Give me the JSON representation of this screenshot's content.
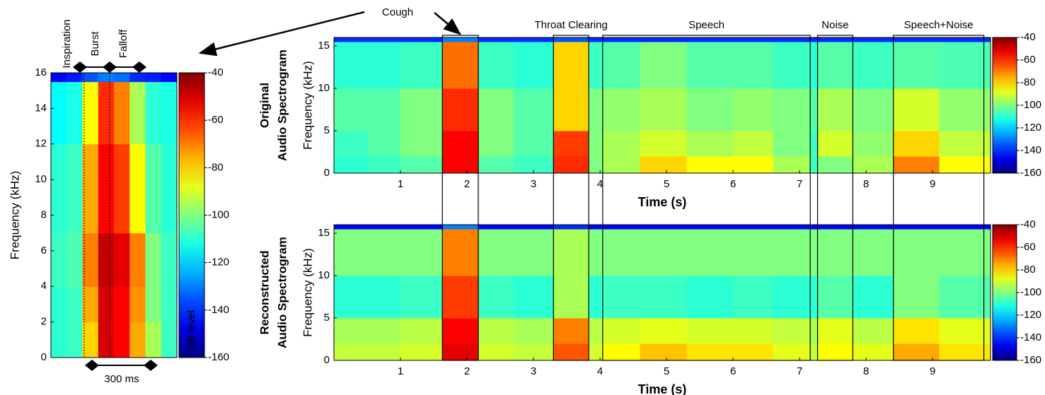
{
  "chart_data": [
    {
      "type": "heatmap",
      "ylabel": "Frequency (kHz)",
      "ylim": [
        0,
        16
      ],
      "yticks": [
        0,
        2,
        4,
        6,
        8,
        10,
        12,
        14,
        16
      ],
      "y_edges": [
        0,
        2,
        4,
        7,
        12,
        15.5,
        16
      ],
      "z": [
        [
          -110,
          -108,
          -80,
          -50,
          -55,
          -75,
          -95,
          -108
        ],
        [
          -110,
          -108,
          -75,
          -50,
          -55,
          -72,
          -100,
          -108
        ],
        [
          -108,
          -106,
          -70,
          -48,
          -52,
          -70,
          -100,
          -108
        ],
        [
          -110,
          -108,
          -75,
          -55,
          -62,
          -85,
          -105,
          -110
        ],
        [
          -115,
          -112,
          -85,
          -60,
          -70,
          -95,
          -110,
          -112
        ],
        [
          -145,
          -142,
          -135,
          -130,
          -132,
          -140,
          -142,
          -145
        ]
      ],
      "clim": [
        -160,
        -40
      ],
      "cticks": [
        -40,
        -60,
        -80,
        -100,
        -120,
        -140,
        -160
      ],
      "clabel": "dB level",
      "annotations": [
        "Inspiration",
        "Burst",
        "Falloff",
        "300 ms"
      ]
    },
    {
      "type": "heatmap",
      "title_lines": [
        "Original",
        "Audio Spectrogram"
      ],
      "ylabel": "Frequency (kHz)",
      "xlabel": "Time (s)",
      "xlim": [
        0,
        9.87
      ],
      "xticks": [
        1,
        2,
        3,
        4,
        5,
        6,
        7,
        8,
        9
      ],
      "ylim": [
        0,
        16
      ],
      "yticks": [
        0,
        5,
        10,
        15
      ],
      "x_edges": [
        0,
        0.5,
        1,
        1.63,
        2.17,
        2.7,
        3.3,
        3.83,
        4.04,
        4.6,
        5.3,
        6,
        6.6,
        7.16,
        7.27,
        7.8,
        8.41,
        9.1,
        9.87
      ],
      "y_edges": [
        0,
        2,
        5,
        10,
        15.5,
        16
      ],
      "z": [
        [
          -110,
          -108,
          -105,
          -55,
          -105,
          -108,
          -60,
          -100,
          -95,
          -80,
          -85,
          -85,
          -95,
          -108,
          -100,
          -95,
          -70,
          -85
        ],
        [
          -108,
          -105,
          -100,
          -55,
          -100,
          -105,
          -62,
          -100,
          -95,
          -90,
          -95,
          -92,
          -100,
          -108,
          -90,
          -98,
          -80,
          -92
        ],
        [
          -105,
          -105,
          -100,
          -60,
          -100,
          -105,
          -80,
          -100,
          -98,
          -95,
          -100,
          -98,
          -100,
          -105,
          -95,
          -100,
          -90,
          -98
        ],
        [
          -110,
          -110,
          -108,
          -68,
          -108,
          -110,
          -80,
          -108,
          -105,
          -100,
          -105,
          -105,
          -108,
          -110,
          -105,
          -108,
          -105,
          -106
        ],
        [
          -140,
          -140,
          -140,
          -130,
          -140,
          -140,
          -135,
          -140,
          -140,
          -140,
          -140,
          -140,
          -140,
          -140,
          -140,
          -140,
          -140,
          -140
        ]
      ],
      "clim": [
        -160,
        -40
      ],
      "cticks": [
        -40,
        -60,
        -80,
        -100,
        -120,
        -140,
        -160
      ]
    },
    {
      "type": "heatmap",
      "title_lines": [
        "Reconstructed",
        "Audio Spectrogram"
      ],
      "ylabel": "Frequency (kHz)",
      "xlabel": "Time (s)",
      "xlim": [
        0,
        9.87
      ],
      "xticks": [
        1,
        2,
        3,
        4,
        5,
        6,
        7,
        8,
        9
      ],
      "ylim": [
        0,
        16
      ],
      "yticks": [
        0,
        5,
        10,
        15
      ],
      "x_edges": [
        0,
        0.5,
        1,
        1.63,
        2.17,
        2.7,
        3.3,
        3.83,
        4.04,
        4.6,
        5.3,
        6,
        6.6,
        7.16,
        7.27,
        7.8,
        8.41,
        9.1,
        9.87
      ],
      "y_edges": [
        0,
        2,
        5,
        10,
        15.5,
        16
      ],
      "z": [
        [
          -92,
          -92,
          -90,
          -52,
          -90,
          -92,
          -65,
          -90,
          -85,
          -78,
          -82,
          -82,
          -88,
          -92,
          -85,
          -88,
          -75,
          -82
        ],
        [
          -95,
          -95,
          -93,
          -55,
          -93,
          -95,
          -70,
          -93,
          -90,
          -88,
          -90,
          -90,
          -92,
          -95,
          -88,
          -93,
          -82,
          -88
        ],
        [
          -110,
          -110,
          -108,
          -62,
          -108,
          -110,
          -95,
          -110,
          -108,
          -108,
          -110,
          -108,
          -110,
          -110,
          -105,
          -110,
          -100,
          -105
        ],
        [
          -100,
          -100,
          -100,
          -70,
          -100,
          -100,
          -95,
          -100,
          -100,
          -100,
          -100,
          -100,
          -100,
          -100,
          -100,
          -100,
          -100,
          -100
        ],
        [
          -145,
          -145,
          -145,
          -130,
          -145,
          -145,
          -140,
          -145,
          -145,
          -145,
          -145,
          -145,
          -145,
          -145,
          -145,
          -145,
          -145,
          -145
        ]
      ],
      "clim": [
        -160,
        -40
      ],
      "cticks": [
        -40,
        -60,
        -80,
        -100,
        -120,
        -140,
        -160
      ]
    }
  ],
  "segments": [
    {
      "label": "Cough",
      "start": 1.63,
      "end": 2.17
    },
    {
      "label": "Throat Clearing",
      "start": 3.3,
      "end": 3.83
    },
    {
      "label": "Speech",
      "start": 4.04,
      "end": 7.16
    },
    {
      "label": "Noise",
      "start": 7.27,
      "end": 7.8
    },
    {
      "label": "Speech+Noise",
      "start": 8.41,
      "end": 9.77
    }
  ]
}
